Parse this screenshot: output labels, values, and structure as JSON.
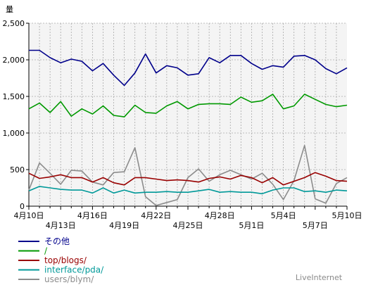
{
  "chart_data": {
    "type": "line",
    "ylabel": "量",
    "ylim": [
      0,
      2500
    ],
    "yticks": [
      0,
      500,
      1000,
      1500,
      2000,
      2500
    ],
    "ytick_labels": [
      "0",
      "500",
      "1,000",
      "1,500",
      "2,000",
      "2,500"
    ],
    "x_dates": [
      "4月10日",
      "4月11日",
      "4月12日",
      "4月13日",
      "4月14日",
      "4月15日",
      "4月16日",
      "4月17日",
      "4月18日",
      "4月19日",
      "4月20日",
      "4月21日",
      "4月22日",
      "4月23日",
      "4月24日",
      "4月25日",
      "4月26日",
      "4月27日",
      "4月28日",
      "4月29日",
      "4月30日",
      "5月1日",
      "5月2日",
      "5月3日",
      "5月4日",
      "5月5日",
      "5月6日",
      "5月7日",
      "5月8日",
      "5月9日",
      "5月10日"
    ],
    "xtick_labels_row1": [
      {
        "index": 0,
        "label": "4月10日"
      },
      {
        "index": 6,
        "label": "4月16日"
      },
      {
        "index": 12,
        "label": "4月22日"
      },
      {
        "index": 18,
        "label": "4月28日"
      },
      {
        "index": 24,
        "label": "5月4日"
      },
      {
        "index": 30,
        "label": "5月10日"
      }
    ],
    "xtick_labels_row2": [
      {
        "index": 3,
        "label": "4月13日"
      },
      {
        "index": 9,
        "label": "4月19日"
      },
      {
        "index": 15,
        "label": "4月25日"
      },
      {
        "index": 21,
        "label": "5月1日"
      },
      {
        "index": 27,
        "label": "5月7日"
      }
    ],
    "grid": true,
    "legend_position": "bottom-left",
    "series": [
      {
        "name": "その他",
        "color": "#00008b",
        "values": [
          2130,
          2130,
          2030,
          1960,
          2010,
          1980,
          1850,
          1950,
          1790,
          1650,
          1820,
          2080,
          1820,
          1920,
          1890,
          1790,
          1810,
          2030,
          1960,
          2060,
          2060,
          1950,
          1870,
          1920,
          1900,
          2050,
          2060,
          2000,
          1880,
          1810,
          1890
        ]
      },
      {
        "name": "/",
        "color": "#009900",
        "values": [
          1330,
          1410,
          1280,
          1430,
          1230,
          1330,
          1260,
          1370,
          1240,
          1220,
          1380,
          1280,
          1270,
          1370,
          1430,
          1330,
          1390,
          1400,
          1400,
          1390,
          1490,
          1420,
          1440,
          1530,
          1330,
          1370,
          1530,
          1460,
          1390,
          1360,
          1380
        ]
      },
      {
        "name": "top/blogs/",
        "color": "#990000",
        "values": [
          450,
          380,
          400,
          430,
          390,
          390,
          330,
          390,
          320,
          290,
          390,
          390,
          370,
          350,
          360,
          350,
          330,
          380,
          400,
          370,
          420,
          390,
          320,
          390,
          290,
          340,
          390,
          460,
          410,
          350,
          340
        ]
      },
      {
        "name": "interface/pda/",
        "color": "#009999",
        "values": [
          210,
          270,
          250,
          230,
          220,
          220,
          180,
          250,
          180,
          220,
          180,
          190,
          190,
          200,
          190,
          190,
          210,
          230,
          190,
          200,
          190,
          190,
          170,
          220,
          250,
          250,
          200,
          210,
          190,
          220,
          210
        ]
      },
      {
        "name": "users/blym/",
        "color": "#8c8c8c",
        "values": [
          220,
          590,
          450,
          300,
          490,
          480,
          330,
          290,
          460,
          470,
          800,
          130,
          10,
          50,
          90,
          390,
          510,
          340,
          430,
          490,
          430,
          370,
          450,
          300,
          90,
          350,
          830,
          100,
          40,
          310,
          390
        ]
      }
    ]
  },
  "branding": "LiveInternet"
}
